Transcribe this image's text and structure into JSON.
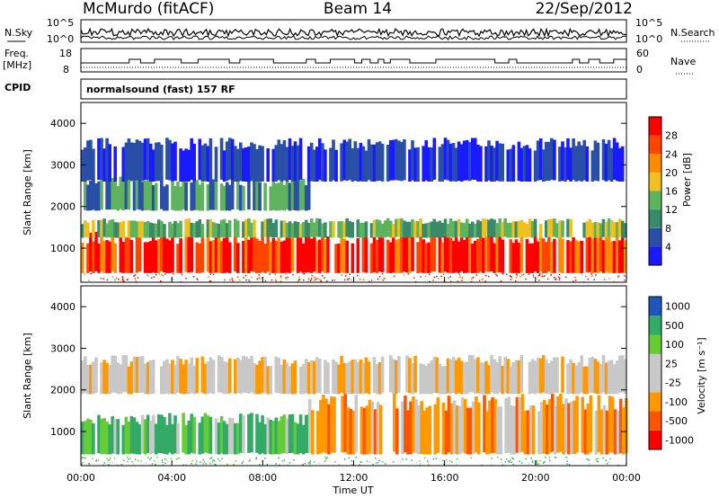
{
  "header": {
    "station": "McMurdo (fitACF)",
    "beam": "Beam 14",
    "date": "22/Sep/2012"
  },
  "noise_panel": {
    "left_label": "N.Sky",
    "right_label": "N.Search",
    "ticks_left": [
      "10^5",
      "10^0"
    ],
    "ticks_right": [
      "10^5",
      "10^0"
    ]
  },
  "freq_panel": {
    "left_label_line1": "Freq.",
    "left_label_line2": "[MHz]",
    "right_label": "Nave",
    "ticks_left": [
      "18",
      "8"
    ],
    "ticks_right": [
      "60",
      "0"
    ]
  },
  "cpid": {
    "label": "CPID",
    "value": "normalsound (fast) 157 RF"
  },
  "colors": {
    "power_scale": [
      "#1a1aff",
      "#2a4fa8",
      "#3a8a6a",
      "#5fb35f",
      "#f0c020",
      "#ff8c00",
      "#ff4500",
      "#ff0000"
    ],
    "velocity_scale": [
      "#ff0000",
      "#ff5500",
      "#ff9900",
      "#c8c8c8",
      "#c8c8c8",
      "#66cc33",
      "#33aa66",
      "#2255bb"
    ],
    "background": "#ffffff"
  },
  "chart_data": [
    {
      "type": "heatmap",
      "ylabel": "Slant Range [km]",
      "ylim": [
        180,
        4500
      ],
      "yticks": [
        "1000",
        "2000",
        "3000",
        "4000"
      ],
      "xlim": [
        "00:00",
        "24:00"
      ],
      "colorbar": {
        "label": "Power [dB]",
        "range": [
          0,
          32
        ],
        "ticks": [
          "4",
          "8",
          "12",
          "16",
          "20",
          "24",
          "28"
        ]
      },
      "bands": [
        {
          "range_km": [
            400,
            1250
          ],
          "power_dB_approx": [
            20,
            32
          ],
          "time": [
            "00:00",
            "24:00"
          ]
        },
        {
          "range_km": [
            1250,
            1650
          ],
          "power_dB_approx": [
            8,
            16
          ],
          "time": [
            "00:00",
            "24:00"
          ]
        },
        {
          "range_km": [
            1900,
            2600
          ],
          "power_dB_approx": [
            8,
            16
          ],
          "time": [
            "00:00",
            "10:00"
          ]
        },
        {
          "range_km": [
            2600,
            3500
          ],
          "power_dB_approx": [
            4,
            8
          ],
          "time": [
            "00:00",
            "24:00"
          ]
        }
      ]
    },
    {
      "type": "heatmap",
      "ylabel": "Slant Range [km]",
      "xlabel": "Time UT",
      "ylim": [
        180,
        4500
      ],
      "yticks": [
        "1000",
        "2000",
        "3000",
        "4000"
      ],
      "xticks": [
        "00:00",
        "04:00",
        "08:00",
        "12:00",
        "16:00",
        "20:00",
        "00:00"
      ],
      "colorbar": {
        "label": "Velocity [m s⁻¹]",
        "ticks": [
          "1000",
          "500",
          "100",
          "25",
          "-25",
          "-100",
          "-500",
          "-1000"
        ]
      },
      "bands": [
        {
          "range_km": [
            450,
            1300
          ],
          "velocity_ms_approx": [
            100,
            500
          ],
          "time": [
            "00:00",
            "10:00"
          ]
        },
        {
          "range_km": [
            450,
            1700
          ],
          "velocity_ms_approx": [
            -500,
            -100
          ],
          "time": [
            "10:00",
            "24:00"
          ]
        },
        {
          "range_km": [
            1900,
            2700
          ],
          "velocity_ms_approx": [
            -25,
            25
          ],
          "time": [
            "00:00",
            "24:00"
          ]
        }
      ]
    }
  ]
}
